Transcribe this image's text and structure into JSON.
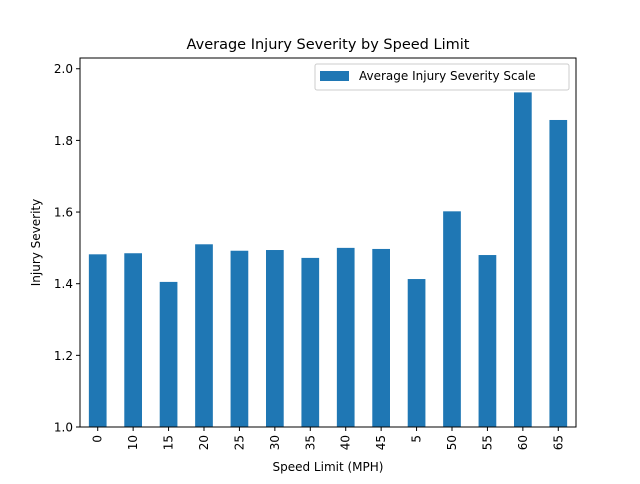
{
  "chart_data": {
    "type": "bar",
    "title": "Average Injury Severity by Speed Limit",
    "xlabel": "Speed Limit (MPH)",
    "ylabel": "Injury Severity",
    "categories": [
      "0",
      "10",
      "15",
      "20",
      "25",
      "30",
      "35",
      "40",
      "45",
      "5",
      "50",
      "55",
      "60",
      "65"
    ],
    "series": [
      {
        "name": "Average Injury Severity Scale",
        "color": "#1f77b4",
        "values": [
          1.482,
          1.485,
          1.405,
          1.51,
          1.492,
          1.494,
          1.472,
          1.5,
          1.497,
          1.413,
          1.602,
          1.48,
          1.934,
          1.857
        ]
      }
    ],
    "ylim": [
      1.0,
      2.03
    ],
    "yticks": [
      "1.0",
      "1.2",
      "1.4",
      "1.6",
      "1.8",
      "2.0"
    ],
    "grid": false,
    "legend_position": "top-right"
  }
}
